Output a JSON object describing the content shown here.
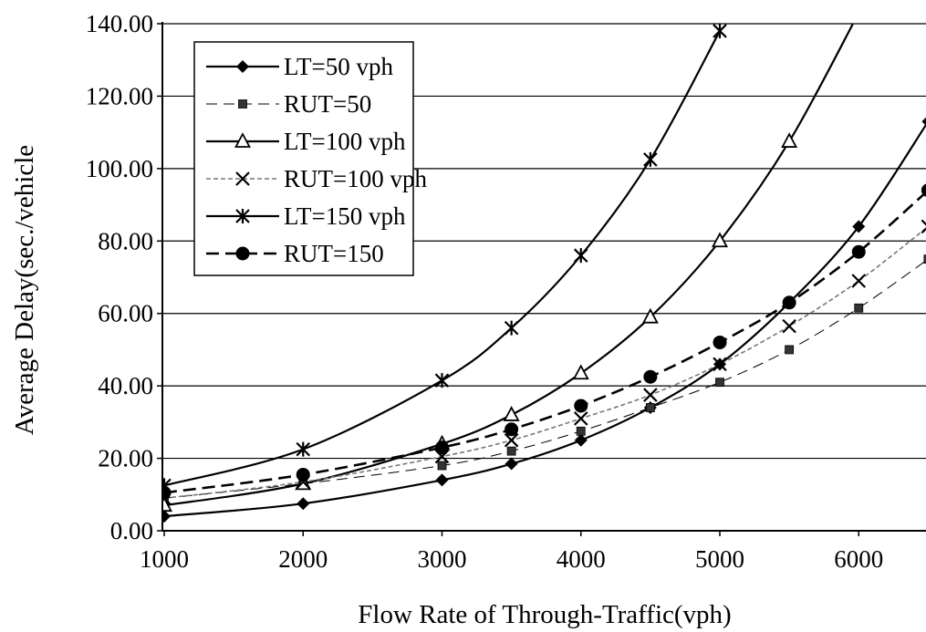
{
  "chart_data": {
    "type": "line",
    "title": "",
    "xlabel": "Flow Rate of Through-Traffic(vph)",
    "ylabel": "Average Delay(sec./vehicle",
    "xlim": [
      1000,
      6500
    ],
    "ylim": [
      0,
      140
    ],
    "xticks": [
      1000,
      2000,
      3000,
      4000,
      5000,
      6000
    ],
    "xtick_labels": [
      "1000",
      "2000",
      "3000",
      "4000",
      "5000",
      "6000"
    ],
    "yticks": [
      0,
      20,
      40,
      60,
      80,
      100,
      120,
      140
    ],
    "ytick_labels": [
      "0.00",
      "20.00",
      "40.00",
      "60.00",
      "80.00",
      "100.00",
      "120.00",
      "140.00"
    ],
    "grid": "horizontal",
    "legend_position": "top-left",
    "series": [
      {
        "name": "LT=50 vph",
        "style": "solid",
        "marker": "diamond",
        "color": "#000000",
        "x": [
          1000,
          2000,
          3000,
          3500,
          4000,
          4500,
          5000,
          5500,
          6000,
          6500
        ],
        "y": [
          4.0,
          7.5,
          14.0,
          18.5,
          25.0,
          34.0,
          46.0,
          63.0,
          84.0,
          113.0
        ]
      },
      {
        "name": "RUT=50",
        "style": "thin-dash",
        "marker": "square",
        "color": "#000000",
        "x": [
          1000,
          2000,
          3000,
          3500,
          4000,
          4500,
          5000,
          5500,
          6000,
          6500
        ],
        "y": [
          9.0,
          13.0,
          18.0,
          22.0,
          27.5,
          34.0,
          41.0,
          50.0,
          61.5,
          75.0
        ]
      },
      {
        "name": "LT=100 vph",
        "style": "solid",
        "marker": "triangle",
        "color": "#000000",
        "x": [
          1000,
          2000,
          3000,
          3500,
          4000,
          4500,
          5000,
          5500,
          6000
        ],
        "y": [
          7.0,
          13.0,
          24.0,
          32.0,
          43.5,
          59.0,
          80.0,
          107.5,
          143.0
        ]
      },
      {
        "name": "RUT=100 vph",
        "style": "dash-gray",
        "marker": "x",
        "color": "#000000",
        "x": [
          1000,
          2000,
          3000,
          3500,
          4000,
          4500,
          5000,
          5500,
          6000,
          6500
        ],
        "y": [
          9.0,
          13.5,
          20.5,
          25.0,
          31.0,
          37.5,
          46.0,
          56.5,
          69.0,
          84.0
        ]
      },
      {
        "name": "LT=150 vph",
        "style": "solid",
        "marker": "star",
        "color": "#000000",
        "x": [
          1000,
          2000,
          3000,
          3500,
          4000,
          4500,
          5000
        ],
        "y": [
          12.5,
          22.5,
          41.5,
          56.0,
          76.0,
          102.5,
          138.0
        ]
      },
      {
        "name": "RUT=150",
        "style": "heavy-dash",
        "marker": "circle",
        "color": "#000000",
        "x": [
          1000,
          2000,
          3000,
          3500,
          4000,
          4500,
          5000,
          5500,
          6000,
          6500
        ],
        "y": [
          10.5,
          15.5,
          23.0,
          28.0,
          34.5,
          42.5,
          52.0,
          63.0,
          77.0,
          94.0
        ]
      }
    ]
  }
}
